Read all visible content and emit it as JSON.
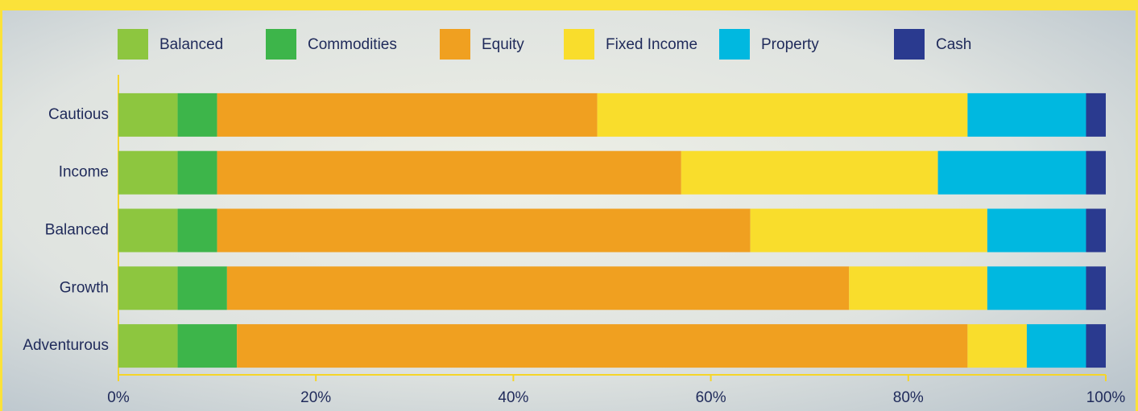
{
  "chart_data": {
    "type": "stacked-barh",
    "categories": [
      "Cautious",
      "Income",
      "Balanced",
      "Growth",
      "Adventurous"
    ],
    "series": [
      {
        "name": "Balanced",
        "color": "#8dc63f",
        "values": [
          6,
          6,
          6,
          6,
          6
        ]
      },
      {
        "name": "Commodities",
        "color": "#3db54a",
        "values": [
          4,
          4,
          4,
          5,
          6
        ]
      },
      {
        "name": "Equity",
        "color": "#f0a020",
        "values": [
          38.5,
          47,
          54,
          63,
          74
        ]
      },
      {
        "name": "Fixed Income",
        "color": "#f9dd2c",
        "values": [
          37.5,
          26,
          24,
          14,
          6
        ]
      },
      {
        "name": "Property",
        "color": "#00b8e0",
        "values": [
          12,
          15,
          10,
          10,
          6
        ]
      },
      {
        "name": "Cash",
        "color": "#2a3a8f",
        "values": [
          2,
          2,
          2,
          2,
          2
        ]
      }
    ],
    "xlim": [
      0,
      100
    ],
    "xticks": [
      {
        "value": 0,
        "label": "0%"
      },
      {
        "value": 20,
        "label": "20%"
      },
      {
        "value": 40,
        "label": "40%"
      },
      {
        "value": 60,
        "label": "60%"
      },
      {
        "value": 80,
        "label": "80%"
      },
      {
        "value": 100,
        "label": "100%"
      }
    ],
    "legend": "top"
  }
}
